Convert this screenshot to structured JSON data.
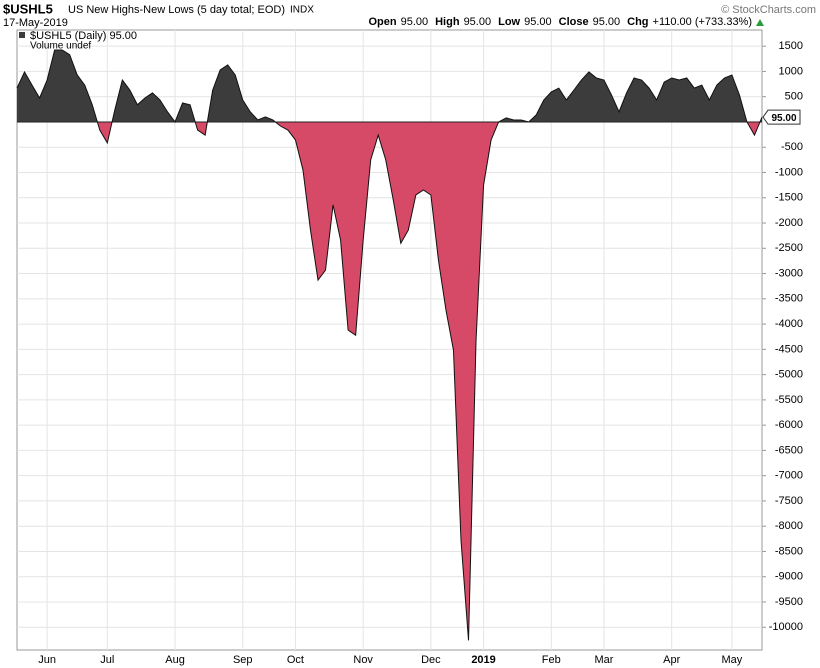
{
  "header": {
    "symbol": "$USHL5",
    "description": "US New Highs-New Lows (5 day total; EOD)",
    "exchange": "INDX",
    "date": "17-May-2019",
    "quote": [
      {
        "label": "Open",
        "value": "95.00"
      },
      {
        "label": "High",
        "value": "95.00"
      },
      {
        "label": "Low",
        "value": "95.00"
      },
      {
        "label": "Close",
        "value": "95.00"
      },
      {
        "label": "Chg",
        "value": "+110.00 (+733.33%)"
      }
    ],
    "credit": "© StockCharts.com",
    "legend": "$USHL5 (Daily) 95.00",
    "volume_note": "Volume undef",
    "price_label": "95.00"
  },
  "chart_data": {
    "type": "area",
    "categories": [
      null,
      null,
      null,
      null,
      "Jun",
      null,
      null,
      null,
      null,
      null,
      null,
      null,
      "Jul",
      null,
      null,
      null,
      null,
      null,
      null,
      null,
      null,
      "Aug",
      null,
      null,
      null,
      null,
      null,
      null,
      null,
      null,
      "Sep",
      null,
      null,
      null,
      null,
      null,
      null,
      "Oct",
      null,
      null,
      null,
      null,
      null,
      null,
      null,
      null,
      "Nov",
      null,
      null,
      null,
      null,
      null,
      null,
      null,
      null,
      "Dec",
      null,
      null,
      null,
      null,
      null,
      null,
      "2019",
      null,
      null,
      null,
      null,
      null,
      null,
      null,
      null,
      "Feb",
      null,
      null,
      null,
      null,
      null,
      null,
      "Mar",
      null,
      null,
      null,
      null,
      null,
      null,
      null,
      null,
      "Apr",
      null,
      null,
      null,
      null,
      null,
      null,
      null,
      "May",
      null,
      null,
      null,
      null
    ],
    "values": [
      670,
      990,
      730,
      475,
      830,
      1425,
      1425,
      1330,
      930,
      730,
      340,
      -160,
      -415,
      240,
      830,
      630,
      340,
      475,
      575,
      435,
      200,
      0,
      375,
      340,
      -160,
      -260,
      630,
      1030,
      1130,
      930,
      435,
      200,
      40,
      100,
      40,
      -80,
      -160,
      -355,
      -950,
      -2140,
      -3130,
      -2930,
      -1640,
      -2340,
      -4120,
      -4220,
      -2340,
      -750,
      -260,
      -750,
      -1545,
      -2400,
      -2140,
      -1445,
      -1345,
      -1445,
      -2730,
      -3720,
      -4515,
      -8280,
      -10260,
      -4320,
      -1250,
      -355,
      0,
      80,
      40,
      40,
      0,
      140,
      435,
      595,
      670,
      435,
      630,
      830,
      990,
      870,
      830,
      535,
      200,
      575,
      870,
      830,
      670,
      435,
      790,
      870,
      830,
      870,
      670,
      730,
      435,
      730,
      870,
      930,
      535,
      0,
      -260,
      95
    ],
    "color_positive": "#3c3c3c",
    "color_negative": "#d64a68",
    "ylim": [
      -10450,
      1820
    ],
    "yticks": [
      1500,
      1000,
      500,
      -500,
      -1000,
      -1500,
      -2000,
      -2500,
      -3000,
      -3500,
      -4000,
      -4500,
      -5000,
      -5500,
      -6000,
      -6500,
      -7000,
      -7500,
      -8000,
      -8500,
      -9000,
      -9500,
      -10000
    ],
    "grid": true
  }
}
